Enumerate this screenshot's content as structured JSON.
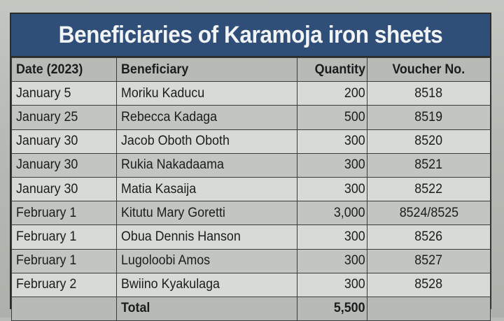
{
  "title": "Beneficiaries of Karamoja iron sheets",
  "columns": {
    "date": "Date (2023)",
    "beneficiary": "Beneficiary",
    "quantity": "Quantity",
    "voucher": "Voucher No."
  },
  "rows": [
    {
      "date": "January 5",
      "beneficiary": "Moriku Kaducu",
      "quantity": "200",
      "voucher": "8518"
    },
    {
      "date": "January 25",
      "beneficiary": "Rebecca Kadaga",
      "quantity": "500",
      "voucher": "8519"
    },
    {
      "date": "January 30",
      "beneficiary": "Jacob Oboth Oboth",
      "quantity": "300",
      "voucher": "8520"
    },
    {
      "date": "January 30",
      "beneficiary": "Rukia Nakadaama",
      "quantity": "300",
      "voucher": "8521"
    },
    {
      "date": "January 30",
      "beneficiary": "Matia Kasaija",
      "quantity": "300",
      "voucher": "8522"
    },
    {
      "date": "February 1",
      "beneficiary": "Kitutu Mary Goretti",
      "quantity": "3,000",
      "voucher": "8524/8525"
    },
    {
      "date": "February 1",
      "beneficiary": "Obua Dennis Hanson",
      "quantity": "300",
      "voucher": "8526"
    },
    {
      "date": "February 1",
      "beneficiary": "Lugoloobi Amos",
      "quantity": "300",
      "voucher": "8527"
    },
    {
      "date": "February 2",
      "beneficiary": "Bwiino Kyakulaga",
      "quantity": "300",
      "voucher": "8528"
    }
  ],
  "total": {
    "label": "Total",
    "quantity": "5,500"
  }
}
